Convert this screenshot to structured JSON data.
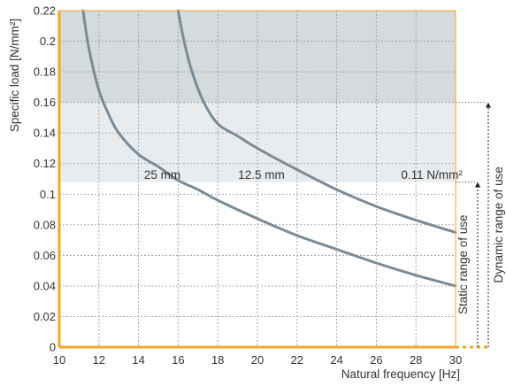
{
  "chart_data": {
    "type": "line",
    "xlabel": "Natural frequency [Hz]",
    "ylabel": "Specific load [N/mm²]",
    "xlim": [
      10,
      30
    ],
    "ylim": [
      0,
      0.22
    ],
    "x_ticks": [
      "10",
      "12",
      "14",
      "16",
      "18",
      "20",
      "22",
      "24",
      "26",
      "28",
      "30"
    ],
    "y_ticks": [
      "0",
      "0.02",
      "0.04",
      "0.06",
      "0.08",
      "0.1",
      "0.12",
      "0.14",
      "0.16",
      "0.18",
      "0.2",
      "0.22"
    ],
    "grid": true,
    "series": [
      {
        "name": "25 mm",
        "color": "#7a8b98",
        "points": [
          [
            11.2,
            0.22
          ],
          [
            11.5,
            0.195
          ],
          [
            12,
            0.168
          ],
          [
            12.5,
            0.152
          ],
          [
            13,
            0.14
          ],
          [
            14,
            0.126
          ],
          [
            15,
            0.118
          ],
          [
            16,
            0.109
          ],
          [
            17,
            0.103
          ],
          [
            18,
            0.096
          ],
          [
            20,
            0.084
          ],
          [
            22,
            0.073
          ],
          [
            24,
            0.064
          ],
          [
            26,
            0.055
          ],
          [
            28,
            0.047
          ],
          [
            30,
            0.04
          ]
        ]
      },
      {
        "name": "12.5 mm",
        "color": "#7a8b98",
        "points": [
          [
            16.0,
            0.22
          ],
          [
            16.3,
            0.2
          ],
          [
            16.7,
            0.18
          ],
          [
            17.3,
            0.16
          ],
          [
            18,
            0.146
          ],
          [
            19,
            0.138
          ],
          [
            20,
            0.13
          ],
          [
            22,
            0.116
          ],
          [
            24,
            0.103
          ],
          [
            26,
            0.092
          ],
          [
            28,
            0.083
          ],
          [
            30,
            0.075
          ]
        ]
      }
    ],
    "regions": [
      {
        "ymin": 0.16,
        "ymax": 0.22,
        "color": "#d5dadd"
      },
      {
        "ymin": 0.108,
        "ymax": 0.16,
        "color": "#e9ecee"
      }
    ],
    "annotations": [
      {
        "text": "25 mm",
        "x": 15.2,
        "y": 0.107
      },
      {
        "text": "12.5 mm",
        "x": 20.2,
        "y": 0.107
      },
      {
        "text": "0.11 N/mm²",
        "x": 28.8,
        "y": 0.107
      }
    ],
    "ranges": [
      {
        "label": "Static range of use",
        "ymin": 0,
        "ymax": 0.108
      },
      {
        "label": "Dynamic range of use",
        "ymin": 0,
        "ymax": 0.16
      }
    ]
  },
  "colors": {
    "axis": "#f5a623",
    "curve": "#7a8b98"
  }
}
